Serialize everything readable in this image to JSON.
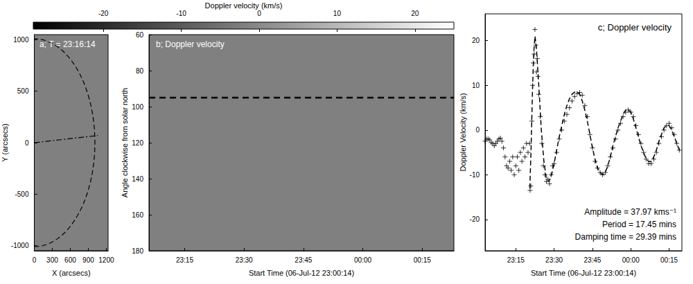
{
  "chart_data": [
    {
      "type": "colorbar",
      "title": "Doppler velocity (km/s)",
      "xlim": [
        -29,
        25
      ],
      "xticks": [
        -20,
        -10,
        0,
        10,
        20
      ],
      "colors": [
        "#000000",
        "#ffffff"
      ]
    },
    {
      "type": "image_axes",
      "title": "a; T = 23:16:14",
      "xlabel": "X (arcsecs)",
      "ylabel": "Y (arcsecs)",
      "xlim": [
        0,
        1230
      ],
      "ylim": [
        -1050,
        1050
      ],
      "xticks": [
        0,
        300,
        600,
        900,
        1200
      ],
      "yticks": [
        -1000,
        -500,
        0,
        500,
        1000
      ],
      "color": "#808080",
      "limb_radius": 1010,
      "slit": {
        "x": [
          0,
          1060
        ],
        "y": [
          0,
          70
        ]
      }
    },
    {
      "type": "time_distance",
      "title": "b; Doppler velocity",
      "xlabel": "Start Time (06-Jul-12 23:00:14)",
      "ylabel": "Angle clockwise from solar north",
      "xlim": [
        6,
        83
      ],
      "xticks": [
        {
          "value": 15,
          "label": "23:15"
        },
        {
          "value": 30,
          "label": "23:30"
        },
        {
          "value": 45,
          "label": "23:45"
        },
        {
          "value": 60,
          "label": "00:00"
        },
        {
          "value": 75,
          "label": "00:15"
        }
      ],
      "ylim": [
        180,
        60
      ],
      "yticks": [
        60,
        80,
        100,
        120,
        140,
        160,
        180
      ],
      "color": "#808080",
      "slit_angle": 95
    },
    {
      "type": "scatter",
      "title": "c; Doppler velocity",
      "xlabel": "Start Time (06-Jul-12 23:00:14)",
      "ylabel": "Doppler Velocity (km/s)",
      "xlim": [
        3,
        80
      ],
      "xticks": [
        {
          "value": 15,
          "label": "23:15"
        },
        {
          "value": 30,
          "label": "23:30"
        },
        {
          "value": 45,
          "label": "23:45"
        },
        {
          "value": 60,
          "label": "00:00"
        },
        {
          "value": 75,
          "label": "00:15"
        }
      ],
      "ylim": [
        -27,
        26
      ],
      "yticks": [
        -20,
        -10,
        0,
        10,
        20
      ],
      "annotations": [
        "Amplitude = 37.97 kms⁻¹",
        "Period = 17.45 mins",
        "Damping time = 29.39 mins"
      ],
      "series": [
        {
          "type": "scatter",
          "marker": "plus",
          "color": "#000000",
          "x": [
            3.0,
            3.6,
            4.2,
            4.8,
            5.4,
            6.0,
            6.6,
            7.2,
            7.8,
            8.4,
            9.0,
            9.6,
            10.2,
            10.8,
            11.4,
            12.0,
            12.6,
            13.2,
            13.8,
            14.4,
            15.0,
            15.6,
            16.2,
            16.8,
            17.4,
            18.0,
            18.6,
            19.2,
            19.8,
            20.4,
            20.6,
            20.9,
            21.3,
            21.6,
            21.9,
            22.2,
            22.5,
            22.8,
            23.1,
            23.4,
            23.7,
            24.0,
            24.6,
            25.2,
            25.8,
            26.4,
            27.0,
            27.6,
            28.2,
            28.8,
            29.4,
            30.0,
            31,
            32,
            33,
            34,
            35,
            36,
            37,
            38,
            39,
            40,
            41,
            42,
            43,
            44,
            45,
            46,
            47,
            48,
            49,
            50,
            51,
            52,
            53,
            54,
            55,
            56,
            57,
            58,
            59,
            60,
            61,
            62,
            63,
            64,
            65,
            66,
            67,
            68,
            69,
            70,
            71,
            72,
            73,
            74,
            75,
            76,
            77,
            78,
            79
          ],
          "values": [
            -2.5,
            -2,
            -2,
            -2.2,
            -2.8,
            -3,
            -3.5,
            -3,
            -2.5,
            -2,
            -1.8,
            -2.5,
            -4,
            -6,
            -8,
            -8.5,
            -7,
            -9,
            -6,
            -10,
            -8,
            -6,
            -9,
            -5,
            -7,
            -4,
            -6,
            -3,
            -5,
            -3,
            -13.5,
            -12.5,
            2,
            10,
            15,
            17,
            22.5,
            19,
            13,
            16,
            12,
            8,
            3,
            -3,
            -8,
            -10,
            -11.5,
            -11,
            -12,
            -10,
            -8,
            -7.5,
            -5,
            -2,
            0,
            2,
            3.5,
            5,
            6.5,
            7.5,
            8.2,
            8.4,
            7.8,
            5.5,
            3,
            -1,
            -4,
            -7,
            -8.5,
            -9.5,
            -10,
            -9.5,
            -8,
            -6,
            -4,
            -2,
            0,
            1.5,
            3,
            4,
            4.5,
            4,
            3,
            1,
            -1,
            -3,
            -5,
            -6.5,
            -7.5,
            -7.5,
            -6.5,
            -5,
            -3,
            -1.5,
            0,
            1,
            1.5,
            0.5,
            -1,
            -3,
            -4.5
          ]
        },
        {
          "type": "line",
          "line_style": "dashed",
          "color": "#000000",
          "x": [
            20.5,
            21,
            21.5,
            22,
            22.5,
            23,
            24,
            25,
            26,
            27,
            28,
            29,
            30,
            31,
            32,
            33,
            34,
            35,
            36,
            37,
            38,
            39,
            40,
            41,
            42,
            43,
            44,
            45,
            46,
            47,
            48,
            49,
            50,
            51,
            52,
            53,
            54,
            55,
            56,
            57,
            58,
            59,
            60,
            61,
            62,
            63,
            64,
            65,
            66,
            67,
            68,
            69,
            70,
            71,
            72,
            73,
            74,
            75,
            76,
            77,
            78,
            79
          ],
          "values": [
            -13,
            -4,
            8,
            17,
            21,
            19,
            10,
            0,
            -7,
            -11,
            -11.5,
            -10,
            -7.5,
            -4.5,
            -1.5,
            1,
            3.5,
            5.5,
            7,
            8,
            8.5,
            8.5,
            8,
            6.5,
            4.5,
            2,
            -1,
            -4,
            -6.5,
            -8.5,
            -9.5,
            -10,
            -9.5,
            -8,
            -6,
            -3.5,
            -1.5,
            0.5,
            2,
            3.5,
            4.5,
            4.5,
            4,
            2.5,
            0.5,
            -1.5,
            -3.5,
            -5,
            -6.5,
            -7,
            -7,
            -6,
            -4.5,
            -2.5,
            -1,
            0.5,
            1,
            1,
            0,
            -1.5,
            -3,
            -4.5
          ]
        }
      ]
    }
  ]
}
